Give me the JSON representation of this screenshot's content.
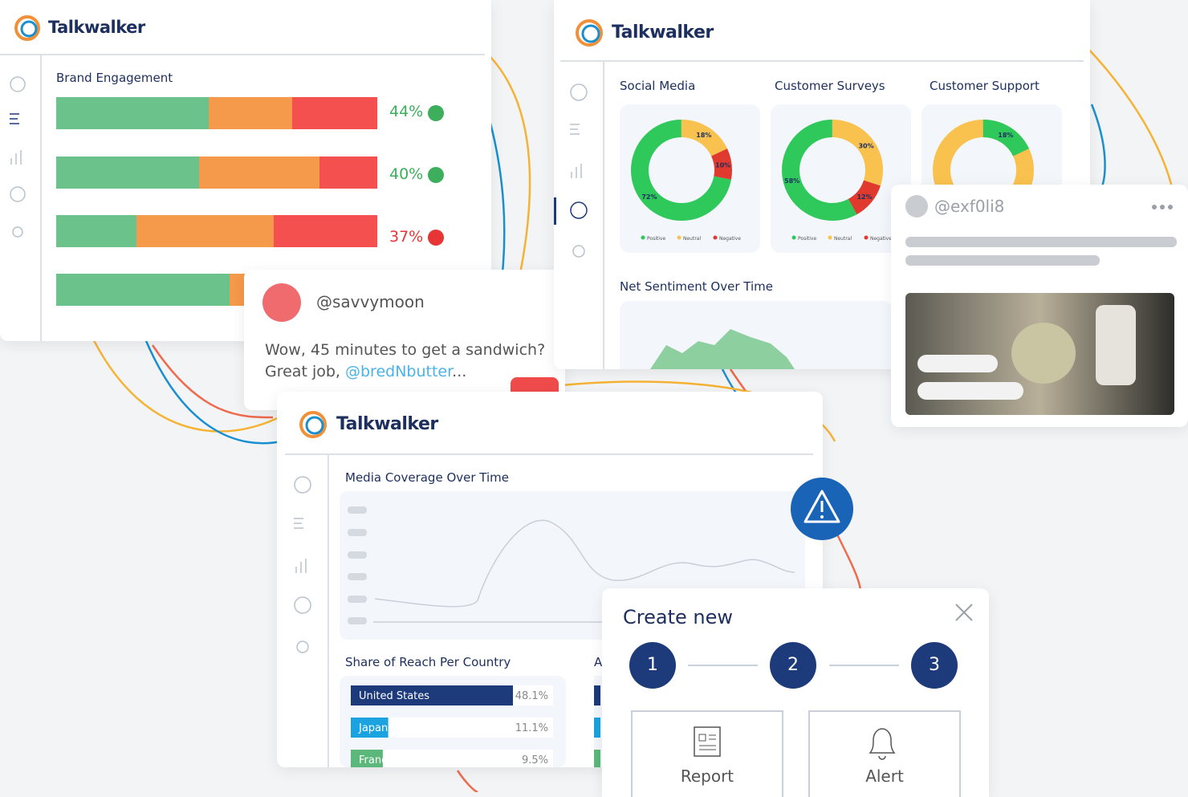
{
  "brand_panel": {
    "logo": "Talkwalker",
    "title": "Brand Engagement",
    "rows": [
      {
        "label": "44%",
        "trend": "up"
      },
      {
        "label": "40%",
        "trend": "up"
      },
      {
        "label": "37%",
        "trend": "down"
      }
    ]
  },
  "tweet": {
    "handle": "@savvymoon",
    "line1": "Wow, 45 minutes to get a sandwich?",
    "line2": "Great job, ",
    "mention": "@bredNbutter",
    "ellipsis": "..."
  },
  "sentiment_panel": {
    "logo": "Talkwalker",
    "legend": [
      "Positive",
      "Neutral",
      "Negative"
    ],
    "donuts": [
      {
        "title": "Social Media",
        "segments": [
          {
            "value": 18,
            "label": "18%",
            "color": "#f9c24e"
          },
          {
            "value": 10,
            "label": "10%",
            "color": "#e0392d"
          },
          {
            "value": 72,
            "label": "72%",
            "color": "#2ec95a"
          }
        ]
      },
      {
        "title": "Customer Surveys",
        "segments": [
          {
            "value": 30,
            "label": "30%",
            "color": "#f9c24e"
          },
          {
            "value": 12,
            "label": "12%",
            "color": "#e0392d"
          },
          {
            "value": 58,
            "label": "58%",
            "color": "#2ec95a"
          }
        ]
      },
      {
        "title": "Customer Support",
        "segments": [
          {
            "value": 18,
            "label": "18%",
            "color": "#2ec95a"
          }
        ]
      }
    ],
    "net_title": "Net Sentiment Over Time"
  },
  "social_card": {
    "handle": "@exf0li8"
  },
  "coverage_panel": {
    "logo": "Talkwalker",
    "title": "Media Coverage Over Time",
    "reach_title": "Share of Reach Per Country",
    "second_title": "A",
    "countries": [
      {
        "name": "United States",
        "value": 48.1,
        "label": "48.1%",
        "color": "#1d3a7a"
      },
      {
        "name": "Japan",
        "value": 11.1,
        "label": "11.1%",
        "color": "#1aa3e0"
      },
      {
        "name": "France",
        "value": 9.5,
        "label": "9.5%",
        "color": "#5cb87a"
      }
    ]
  },
  "dialog": {
    "title": "Create new",
    "steps": [
      "1",
      "2",
      "3"
    ],
    "options": [
      "Report",
      "Alert"
    ]
  }
}
